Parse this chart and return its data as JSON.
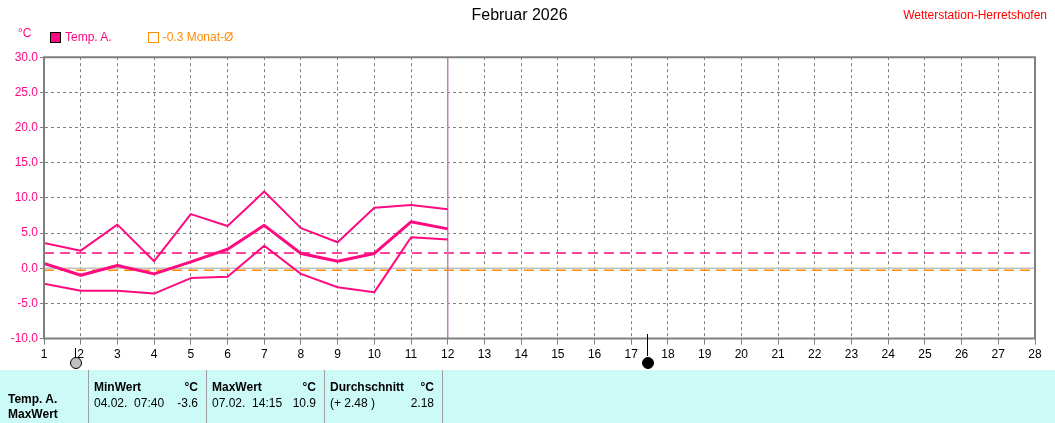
{
  "chart_data": {
    "type": "line",
    "title": "Februar 2026",
    "subtitle": "Wetterstation-Herretshofen",
    "ylabel": "°C",
    "xlim": [
      1,
      28
    ],
    "xticks": [
      1,
      2,
      3,
      4,
      5,
      6,
      7,
      8,
      9,
      10,
      11,
      12,
      13,
      14,
      15,
      16,
      17,
      18,
      19,
      20,
      21,
      22,
      23,
      24,
      25,
      26,
      27,
      28
    ],
    "ylim": [
      -10,
      30
    ],
    "yticks": [
      {
        "value": -10,
        "label": "-10.0"
      },
      {
        "value": -5,
        "label": "-5.0"
      },
      {
        "value": 0,
        "label": "0.0"
      },
      {
        "value": 5,
        "label": "5.0"
      },
      {
        "value": 10,
        "label": "10.0"
      },
      {
        "value": 15,
        "label": "15.0"
      },
      {
        "value": 20,
        "label": "20.0"
      },
      {
        "value": 25,
        "label": "25.0"
      },
      {
        "value": 30,
        "label": "30.0"
      }
    ],
    "grid": true,
    "legend": "top left",
    "marker": "none",
    "line_style": "solid",
    "series": [
      {
        "color": "#ff0a80",
        "x": [
          1,
          2,
          3,
          4,
          5,
          6,
          7,
          8,
          9,
          10,
          11,
          12
        ],
        "values": [
          3.6,
          2.5,
          6.2,
          1.0,
          7.7,
          6.0,
          10.9,
          5.7,
          3.7,
          8.6,
          9.0,
          8.4
        ]
      },
      {
        "name": "Temp. A.",
        "color": "#ff0a80",
        "x": [
          1,
          2,
          3,
          4,
          5,
          6,
          7,
          8,
          9,
          10,
          11,
          12
        ],
        "values": [
          0.7,
          -1.0,
          0.4,
          -0.8,
          0.9,
          2.7,
          6.1,
          2.1,
          1.0,
          2.1,
          6.6,
          5.6
        ]
      },
      {
        "color": "#ff0a80",
        "x": [
          1,
          2,
          3,
          4,
          5,
          6,
          7,
          8,
          9,
          10,
          11,
          12
        ],
        "values": [
          -2.2,
          -3.2,
          -3.2,
          -3.6,
          -1.4,
          -1.2,
          3.2,
          -0.8,
          -2.7,
          -3.4,
          4.4,
          4.1
        ]
      }
    ],
    "ref_lines": [
      {
        "axis": "y",
        "value": 0,
        "color": "#c0c0c0",
        "line_style": "solid"
      },
      {
        "axis": "y",
        "value": 2.18,
        "color": "#ff0a80",
        "line_style": "dashed"
      },
      {
        "axis": "y",
        "value": -0.3,
        "label": "-0.3 Monat-Ø",
        "color": "#ff8c00",
        "line_style": "dashed"
      },
      {
        "axis": "x",
        "value": 12,
        "color": "#b488b4",
        "line_style": "solid"
      }
    ],
    "annotations": [
      "Temp. A.",
      "MaxWert",
      "MinWert",
      "°C",
      "04.02.  07:40",
      "-3.6",
      "MaxWert",
      "°C",
      "07.02.  14:15",
      "10.9",
      "Durchschnitt",
      "°C",
      "(+ 2.48 )",
      "2.18"
    ]
  }
}
